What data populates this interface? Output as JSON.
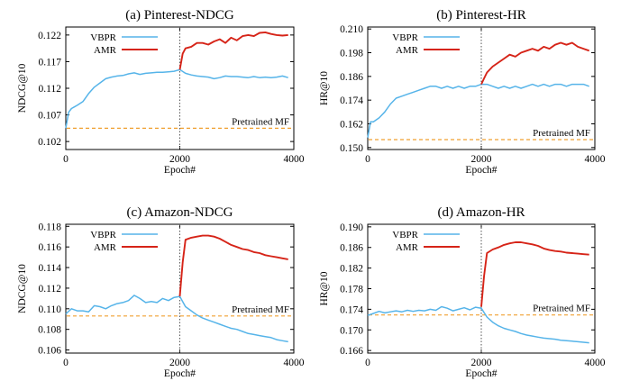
{
  "figure": {
    "colors": {
      "VBPR": "#56b4e9",
      "AMR": "#d62418",
      "pretrained": "#f0a030",
      "divider": "#555555"
    }
  },
  "chart_data": [
    {
      "type": "line",
      "title": "(a) Pinterest-NDCG",
      "xlabel": "Epoch#",
      "ylabel": "NDCG@10",
      "xlim": [
        0,
        4000
      ],
      "ylim": [
        0.1005,
        0.1235
      ],
      "xticks": [
        0,
        2000,
        4000
      ],
      "xtick_labels": [
        "0",
        "2000",
        "4000"
      ],
      "yticks": [
        0.102,
        0.107,
        0.112,
        0.117,
        0.122
      ],
      "ytick_labels": [
        "0.102",
        "0.107",
        "0.112",
        "0.117",
        "0.122"
      ],
      "grid": false,
      "legend": "top-left",
      "divider_x": 2000,
      "series": [
        {
          "name": "VBPR",
          "x": [
            0,
            50,
            100,
            150,
            200,
            300,
            400,
            500,
            600,
            700,
            800,
            900,
            1000,
            1100,
            1200,
            1300,
            1400,
            1500,
            1600,
            1700,
            1800,
            1900,
            2000,
            2100,
            2200,
            2300,
            2400,
            2500,
            2600,
            2700,
            2800,
            2900,
            3000,
            3100,
            3200,
            3300,
            3400,
            3500,
            3600,
            3700,
            3800,
            3900
          ],
          "y": [
            0.1045,
            0.1075,
            0.1082,
            0.1085,
            0.1088,
            0.1095,
            0.111,
            0.1122,
            0.113,
            0.1138,
            0.1141,
            0.1143,
            0.1144,
            0.1147,
            0.1149,
            0.1146,
            0.1148,
            0.1149,
            0.115,
            0.115,
            0.1151,
            0.1152,
            0.1155,
            0.1148,
            0.1145,
            0.1143,
            0.1142,
            0.1141,
            0.1138,
            0.114,
            0.1143,
            0.1142,
            0.1142,
            0.1141,
            0.114,
            0.1142,
            0.114,
            0.1141,
            0.114,
            0.1141,
            0.1143,
            0.114
          ]
        },
        {
          "name": "AMR",
          "x": [
            2000,
            2050,
            2100,
            2200,
            2300,
            2400,
            2500,
            2600,
            2700,
            2800,
            2900,
            3000,
            3100,
            3200,
            3300,
            3400,
            3500,
            3600,
            3700,
            3800,
            3900
          ],
          "y": [
            0.1155,
            0.1185,
            0.1195,
            0.1198,
            0.1205,
            0.1205,
            0.1202,
            0.1208,
            0.1212,
            0.1205,
            0.1215,
            0.121,
            0.1218,
            0.122,
            0.1218,
            0.1224,
            0.1225,
            0.1222,
            0.122,
            0.1219,
            0.122
          ]
        }
      ],
      "baseline": {
        "label": "Pretrained MF",
        "y": 0.1045
      }
    },
    {
      "type": "line",
      "title": "(b) Pinterest-HR",
      "xlabel": "Epoch#",
      "ylabel": "HR@10",
      "xlim": [
        0,
        4000
      ],
      "ylim": [
        0.149,
        0.211
      ],
      "xticks": [
        0,
        2000,
        4000
      ],
      "xtick_labels": [
        "0",
        "2000",
        "4000"
      ],
      "yticks": [
        0.15,
        0.162,
        0.174,
        0.186,
        0.198,
        0.21
      ],
      "ytick_labels": [
        "0.150",
        "0.162",
        "0.174",
        "0.186",
        "0.198",
        "0.210"
      ],
      "grid": false,
      "legend": "top-left",
      "divider_x": 2000,
      "series": [
        {
          "name": "VBPR",
          "x": [
            0,
            50,
            100,
            200,
            300,
            400,
            500,
            600,
            700,
            800,
            900,
            1000,
            1100,
            1200,
            1300,
            1400,
            1500,
            1600,
            1700,
            1800,
            1900,
            2000,
            2100,
            2200,
            2300,
            2400,
            2500,
            2600,
            2700,
            2800,
            2900,
            3000,
            3100,
            3200,
            3300,
            3400,
            3500,
            3600,
            3700,
            3800,
            3900
          ],
          "y": [
            0.155,
            0.163,
            0.163,
            0.165,
            0.168,
            0.172,
            0.175,
            0.176,
            0.177,
            0.178,
            0.179,
            0.18,
            0.181,
            0.181,
            0.18,
            0.181,
            0.18,
            0.181,
            0.18,
            0.181,
            0.181,
            0.182,
            0.182,
            0.181,
            0.18,
            0.181,
            0.18,
            0.181,
            0.18,
            0.181,
            0.182,
            0.181,
            0.182,
            0.181,
            0.182,
            0.182,
            0.181,
            0.182,
            0.182,
            0.182,
            0.181
          ]
        },
        {
          "name": "AMR",
          "x": [
            2000,
            2050,
            2100,
            2200,
            2300,
            2400,
            2500,
            2600,
            2700,
            2800,
            2900,
            3000,
            3100,
            3200,
            3300,
            3400,
            3500,
            3600,
            3700,
            3800,
            3900
          ],
          "y": [
            0.182,
            0.185,
            0.188,
            0.191,
            0.193,
            0.195,
            0.197,
            0.196,
            0.198,
            0.199,
            0.2,
            0.199,
            0.201,
            0.2,
            0.202,
            0.203,
            0.202,
            0.203,
            0.201,
            0.2,
            0.199
          ]
        }
      ],
      "baseline": {
        "label": "Pretrained MF",
        "y": 0.154
      }
    },
    {
      "type": "line",
      "title": "(c) Amazon-NDCG",
      "xlabel": "Epoch#",
      "ylabel": "NDCG@10",
      "xlim": [
        0,
        4000
      ],
      "ylim": [
        0.1057,
        0.1182
      ],
      "xticks": [
        0,
        2000,
        4000
      ],
      "xtick_labels": [
        "0",
        "2000",
        "4000"
      ],
      "yticks": [
        0.106,
        0.108,
        0.11,
        0.112,
        0.114,
        0.116,
        0.118
      ],
      "ytick_labels": [
        "0.106",
        "0.108",
        "0.110",
        "0.112",
        "0.114",
        "0.116",
        "0.118"
      ],
      "grid": false,
      "legend": "top-left",
      "divider_x": 2000,
      "series": [
        {
          "name": "VBPR",
          "x": [
            0,
            100,
            200,
            300,
            400,
            500,
            600,
            700,
            800,
            900,
            1000,
            1100,
            1200,
            1300,
            1400,
            1500,
            1600,
            1700,
            1800,
            1900,
            2000,
            2100,
            2200,
            2300,
            2400,
            2500,
            2600,
            2700,
            2800,
            2900,
            3000,
            3100,
            3200,
            3300,
            3400,
            3500,
            3600,
            3700,
            3800,
            3900
          ],
          "y": [
            0.1095,
            0.11,
            0.1098,
            0.1098,
            0.1097,
            0.1103,
            0.1102,
            0.11,
            0.1103,
            0.1105,
            0.1106,
            0.1108,
            0.1113,
            0.111,
            0.1106,
            0.1107,
            0.1106,
            0.111,
            0.1108,
            0.1111,
            0.1112,
            0.1102,
            0.1098,
            0.1094,
            0.1091,
            0.1089,
            0.1087,
            0.1085,
            0.1083,
            0.1081,
            0.108,
            0.1078,
            0.1076,
            0.1075,
            0.1074,
            0.1073,
            0.1072,
            0.107,
            0.1069,
            0.1068
          ]
        },
        {
          "name": "AMR",
          "x": [
            2000,
            2050,
            2100,
            2200,
            2300,
            2400,
            2500,
            2600,
            2700,
            2800,
            2900,
            3000,
            3100,
            3200,
            3300,
            3400,
            3500,
            3600,
            3700,
            3800,
            3900
          ],
          "y": [
            0.1112,
            0.1145,
            0.1167,
            0.1169,
            0.117,
            0.1171,
            0.1171,
            0.117,
            0.1168,
            0.1165,
            0.1162,
            0.116,
            0.1158,
            0.1157,
            0.1155,
            0.1154,
            0.1152,
            0.1151,
            0.115,
            0.1149,
            0.1148
          ]
        }
      ],
      "baseline": {
        "label": "Pretrained MF",
        "y": 0.1093
      }
    },
    {
      "type": "line",
      "title": "(d) Amazon-HR",
      "xlabel": "Epoch#",
      "ylabel": "HR@10",
      "xlim": [
        0,
        4000
      ],
      "ylim": [
        0.1655,
        0.1905
      ],
      "xticks": [
        0,
        2000,
        4000
      ],
      "xtick_labels": [
        "0",
        "2000",
        "4000"
      ],
      "yticks": [
        0.166,
        0.17,
        0.174,
        0.178,
        0.182,
        0.186,
        0.19
      ],
      "ytick_labels": [
        "0.166",
        "0.170",
        "0.174",
        "0.178",
        "0.182",
        "0.186",
        "0.190"
      ],
      "grid": false,
      "legend": "top-left",
      "divider_x": 2000,
      "series": [
        {
          "name": "VBPR",
          "x": [
            0,
            100,
            200,
            300,
            400,
            500,
            600,
            700,
            800,
            900,
            1000,
            1100,
            1200,
            1300,
            1400,
            1500,
            1600,
            1700,
            1800,
            1900,
            2000,
            2100,
            2200,
            2300,
            2400,
            2500,
            2600,
            2700,
            2800,
            2900,
            3000,
            3100,
            3200,
            3300,
            3400,
            3500,
            3600,
            3700,
            3800,
            3900
          ],
          "y": [
            0.1728,
            0.1732,
            0.1736,
            0.1733,
            0.1735,
            0.1737,
            0.1735,
            0.1738,
            0.1736,
            0.1738,
            0.1737,
            0.174,
            0.1738,
            0.1745,
            0.1742,
            0.1737,
            0.174,
            0.1743,
            0.1739,
            0.1744,
            0.1742,
            0.1725,
            0.1715,
            0.1708,
            0.1703,
            0.17,
            0.1697,
            0.1693,
            0.169,
            0.1688,
            0.1686,
            0.1684,
            0.1683,
            0.1682,
            0.168,
            0.1679,
            0.1678,
            0.1677,
            0.1676,
            0.1675
          ]
        },
        {
          "name": "AMR",
          "x": [
            2000,
            2050,
            2100,
            2200,
            2300,
            2400,
            2500,
            2600,
            2700,
            2800,
            2900,
            3000,
            3100,
            3200,
            3300,
            3400,
            3500,
            3600,
            3700,
            3800,
            3900
          ],
          "y": [
            0.1745,
            0.1805,
            0.1849,
            0.1856,
            0.186,
            0.1865,
            0.1868,
            0.187,
            0.187,
            0.1868,
            0.1866,
            0.1863,
            0.1858,
            0.1855,
            0.1853,
            0.1852,
            0.185,
            0.1849,
            0.1848,
            0.1847,
            0.1846
          ]
        }
      ],
      "baseline": {
        "label": "Pretrained MF",
        "y": 0.1729
      }
    }
  ]
}
